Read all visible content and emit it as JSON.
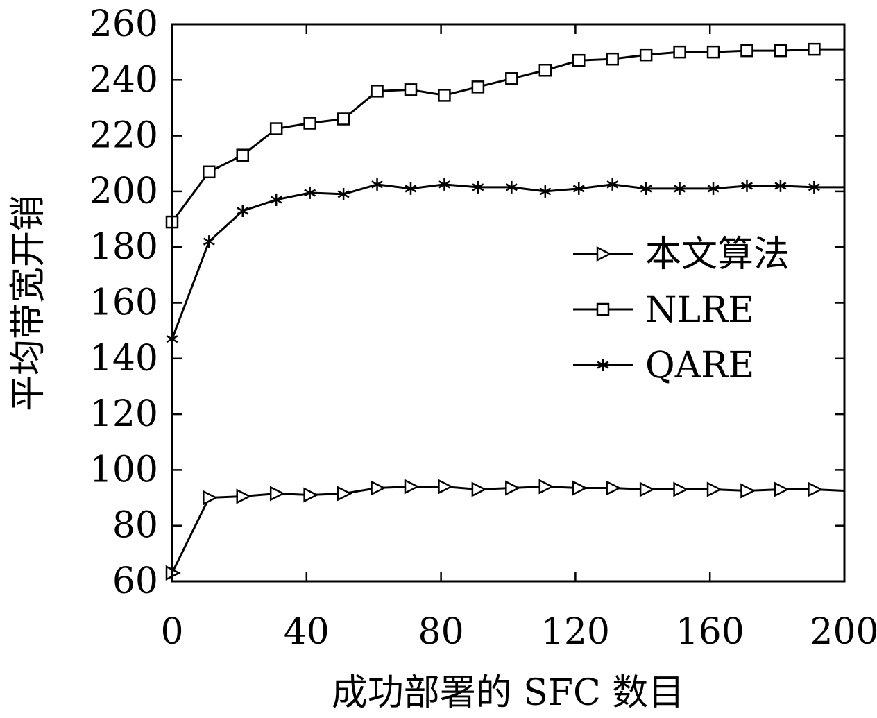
{
  "chart_data": {
    "type": "line",
    "title": "",
    "xlabel": "成功部署的 SFC 数目",
    "ylabel": "平均带宽开销",
    "xlim": [
      0,
      200
    ],
    "ylim": [
      60,
      260
    ],
    "xticks": [
      "0",
      "40",
      "80",
      "120",
      "160",
      "200"
    ],
    "yticks": [
      "60",
      "80",
      "100",
      "120",
      "140",
      "160",
      "180",
      "200",
      "220",
      "240",
      "260"
    ],
    "grid": false,
    "legend_position": "center-right",
    "line_color": "#000000",
    "series": [
      {
        "name": "本文算法",
        "marker": "triangle-right",
        "points": [
          [
            0,
            63
          ],
          [
            11,
            90
          ],
          [
            21,
            90.5
          ],
          [
            31,
            91.5
          ],
          [
            41,
            91
          ],
          [
            51,
            91.5
          ],
          [
            61,
            93.5
          ],
          [
            71,
            94
          ],
          [
            81,
            94
          ],
          [
            91,
            93
          ],
          [
            101,
            93.5
          ],
          [
            111,
            94
          ],
          [
            121,
            93.5
          ],
          [
            131,
            93.5
          ],
          [
            141,
            93
          ],
          [
            151,
            93
          ],
          [
            161,
            93
          ],
          [
            171,
            92.5
          ],
          [
            181,
            93
          ],
          [
            191,
            93
          ],
          [
            200,
            92.5
          ]
        ]
      },
      {
        "name": "NLRE",
        "marker": "square",
        "points": [
          [
            0,
            189
          ],
          [
            11,
            207
          ],
          [
            21,
            213
          ],
          [
            31,
            222.5
          ],
          [
            41,
            224.5
          ],
          [
            51,
            226
          ],
          [
            61,
            236
          ],
          [
            71,
            236.5
          ],
          [
            81,
            234.5
          ],
          [
            91,
            237.5
          ],
          [
            101,
            240.5
          ],
          [
            111,
            243.5
          ],
          [
            121,
            247
          ],
          [
            131,
            247.5
          ],
          [
            141,
            249
          ],
          [
            151,
            250
          ],
          [
            161,
            250
          ],
          [
            171,
            250.5
          ],
          [
            181,
            250.5
          ],
          [
            191,
            251
          ],
          [
            200,
            251
          ]
        ]
      },
      {
        "name": "QARE",
        "marker": "asterisk",
        "points": [
          [
            0,
            147
          ],
          [
            11,
            182
          ],
          [
            21,
            193
          ],
          [
            31,
            197
          ],
          [
            41,
            199.5
          ],
          [
            51,
            199
          ],
          [
            61,
            202.5
          ],
          [
            71,
            201
          ],
          [
            81,
            202.5
          ],
          [
            91,
            201.5
          ],
          [
            101,
            201.5
          ],
          [
            111,
            200
          ],
          [
            121,
            201
          ],
          [
            131,
            202.5
          ],
          [
            141,
            201
          ],
          [
            151,
            201
          ],
          [
            161,
            201
          ],
          [
            171,
            202
          ],
          [
            181,
            202
          ],
          [
            191,
            201.5
          ],
          [
            200,
            201.5
          ]
        ]
      }
    ]
  }
}
